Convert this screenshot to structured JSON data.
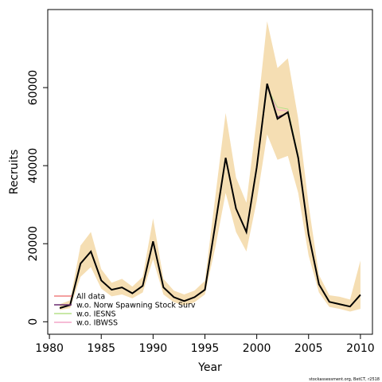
{
  "chart_data": {
    "type": "line",
    "xlabel": "Year",
    "ylabel": "Recruits",
    "footnote": "stockassessment.org, BetCT, r2518",
    "x": [
      1981,
      1982,
      1983,
      1984,
      1985,
      1986,
      1987,
      1988,
      1989,
      1990,
      1991,
      1992,
      1993,
      1994,
      1995,
      1996,
      1997,
      1998,
      1999,
      2000,
      2001,
      2002,
      2003,
      2004,
      2005,
      2006,
      2007,
      2008,
      2009,
      2010
    ],
    "main_line_color": "#000000",
    "band_color": "#f5deb3",
    "band_lower": [
      3000,
      3500,
      11500,
      14000,
      8500,
      6500,
      7000,
      6000,
      7500,
      16000,
      7000,
      5000,
      4200,
      5000,
      7000,
      19000,
      33000,
      23000,
      18000,
      31000,
      48000,
      41500,
      42500,
      33000,
      17000,
      7500,
      3800,
      3300,
      2600,
      3300
    ],
    "band_upper": [
      4500,
      5500,
      19500,
      23000,
      13500,
      10000,
      11000,
      9000,
      11500,
      26500,
      11000,
      8000,
      7000,
      8000,
      10500,
      32000,
      53500,
      37000,
      30500,
      52000,
      77000,
      65000,
      67500,
      52000,
      30000,
      12000,
      6800,
      6400,
      5700,
      15700
    ],
    "series": [
      {
        "name": "All data",
        "color": "#f08080",
        "values": [
          3500,
          4300,
          14900,
          18000,
          10600,
          8200,
          8800,
          7300,
          9200,
          20600,
          8800,
          6300,
          5300,
          6300,
          8200,
          24900,
          42000,
          29000,
          23000,
          39600,
          61000,
          52000,
          53700,
          42000,
          22400,
          9600,
          5100,
          4500,
          3900,
          6900
        ]
      },
      {
        "name": "w.o. Norw Spawning Stock Surv",
        "color": "#6a2c70",
        "values": [
          3500,
          4300,
          14900,
          18000,
          10600,
          8200,
          8800,
          7300,
          9200,
          20600,
          8800,
          6300,
          5300,
          6300,
          8200,
          24900,
          42000,
          29000,
          23000,
          39600,
          60500,
          52500,
          53500,
          42000,
          22400,
          9600,
          5100,
          4500,
          3900,
          6900
        ]
      },
      {
        "name": "w.o. IESNS",
        "color": "#b5e08a",
        "values": [
          3500,
          4300,
          14900,
          18000,
          10600,
          8200,
          8800,
          7300,
          9200,
          20600,
          8800,
          6300,
          5300,
          6300,
          8200,
          24900,
          42000,
          29000,
          23000,
          39600,
          60000,
          55000,
          54500,
          42500,
          22600,
          9700,
          5200,
          4600,
          4000,
          7000
        ]
      },
      {
        "name": "w.o. IBWSS",
        "color": "#f4a6c8",
        "values": [
          3500,
          4300,
          14900,
          18000,
          10600,
          8200,
          8800,
          7300,
          9200,
          20600,
          8800,
          6300,
          5300,
          6300,
          8200,
          24900,
          42000,
          29000,
          23000,
          39600,
          60000,
          54300,
          54000,
          42300,
          22500,
          9600,
          5100,
          4500,
          3900,
          6900
        ]
      }
    ],
    "xlim": [
      1979.84,
      2011.16
    ],
    "xticks": [
      1980,
      1985,
      1990,
      1995,
      2000,
      2005,
      2010
    ],
    "ylim": [
      -3200,
      80000
    ],
    "yticks": [
      0,
      20000,
      40000,
      60000
    ],
    "legend": "bottom-left"
  }
}
